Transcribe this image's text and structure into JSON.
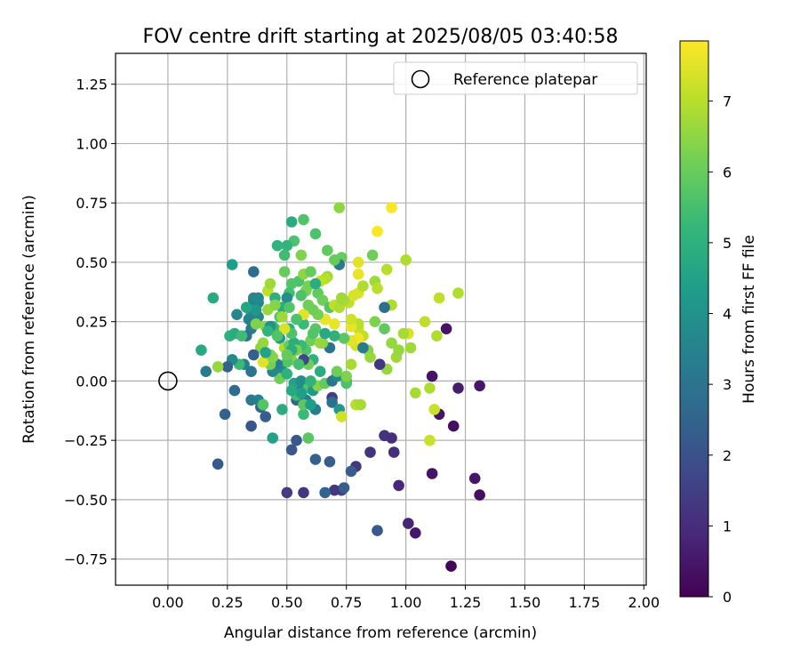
{
  "chart_data": {
    "type": "scatter",
    "title": "FOV centre drift starting at 2025/08/05 03:40:58",
    "xlabel": "Angular distance from reference (arcmin)",
    "ylabel": "Rotation from reference (arcmin)",
    "xlim": [
      -0.22,
      2.01
    ],
    "ylim": [
      -0.86,
      1.38
    ],
    "xticks": [
      0.0,
      0.25,
      0.5,
      0.75,
      1.0,
      1.25,
      1.5,
      1.75,
      2.0
    ],
    "xtick_labels": [
      "0.00",
      "0.25",
      "0.50",
      "0.75",
      "1.00",
      "1.25",
      "1.50",
      "1.75",
      "2.00"
    ],
    "yticks": [
      -0.75,
      -0.5,
      -0.25,
      0.0,
      0.25,
      0.5,
      0.75,
      1.0,
      1.25
    ],
    "ytick_labels": [
      "−0.75",
      "−0.50",
      "−0.25",
      "0.00",
      "0.25",
      "0.50",
      "0.75",
      "1.00",
      "1.25"
    ],
    "grid": true,
    "legend": {
      "position": "top-right",
      "entries": [
        "Reference platepar"
      ]
    },
    "reference_point": {
      "x": 0.0,
      "y": 0.0
    },
    "colorbar": {
      "label": "Hours from first FF file",
      "range": [
        0,
        7.85
      ],
      "ticks": [
        0,
        1,
        2,
        3,
        4,
        5,
        6,
        7
      ],
      "tick_labels": [
        "0",
        "1",
        "2",
        "3",
        "4",
        "5",
        "6",
        "7"
      ],
      "colormap": "viridis"
    },
    "colors": {
      "grid": "#b0b0b0",
      "viridis": [
        "#440154",
        "#482878",
        "#3e4989",
        "#31688e",
        "#26828e",
        "#1f9e89",
        "#35b779",
        "#6ece58",
        "#b5de2b",
        "#fde725"
      ]
    },
    "points": [
      [
        1.19,
        -0.78,
        0.1
      ],
      [
        1.04,
        -0.64,
        0.5
      ],
      [
        1.01,
        -0.6,
        0.8
      ],
      [
        0.97,
        -0.44,
        0.9
      ],
      [
        0.95,
        -0.3,
        1.0
      ],
      [
        0.94,
        -0.24,
        1.0
      ],
      [
        0.91,
        -0.23,
        1.1
      ],
      [
        1.29,
        -0.41,
        0.5
      ],
      [
        1.31,
        -0.48,
        0.3
      ],
      [
        1.11,
        -0.39,
        0.4
      ],
      [
        1.31,
        -0.02,
        0.5
      ],
      [
        1.22,
        -0.03,
        0.6
      ],
      [
        1.2,
        -0.19,
        0.3
      ],
      [
        1.14,
        -0.14,
        0.4
      ],
      [
        1.11,
        0.02,
        0.4
      ],
      [
        1.17,
        0.22,
        0.4
      ],
      [
        0.85,
        -0.3,
        1.2
      ],
      [
        0.79,
        -0.36,
        1.3
      ],
      [
        0.73,
        -0.46,
        1.5
      ],
      [
        0.77,
        -0.38,
        2.3
      ],
      [
        0.7,
        -0.46,
        1.3
      ],
      [
        0.66,
        -0.47,
        2.5
      ],
      [
        0.57,
        -0.47,
        1.3
      ],
      [
        0.5,
        -0.47,
        1.4
      ],
      [
        0.88,
        -0.63,
        2.2
      ],
      [
        0.74,
        -0.45,
        2.3
      ],
      [
        0.62,
        -0.33,
        2.4
      ],
      [
        0.68,
        -0.34,
        2.3
      ],
      [
        0.52,
        -0.29,
        2.2
      ],
      [
        0.54,
        -0.25,
        2.2
      ],
      [
        0.21,
        -0.35,
        2.2
      ],
      [
        0.35,
        -0.19,
        2.1
      ],
      [
        0.41,
        -0.15,
        2.3
      ],
      [
        0.24,
        -0.14,
        2.4
      ],
      [
        0.39,
        -0.11,
        2.6
      ],
      [
        0.28,
        -0.04,
        2.7
      ],
      [
        0.35,
        -0.08,
        3.2
      ],
      [
        0.38,
        -0.08,
        3.4
      ],
      [
        0.4,
        -0.1,
        5.7
      ],
      [
        0.44,
        -0.24,
        4.5
      ],
      [
        0.48,
        -0.12,
        4.9
      ],
      [
        0.57,
        -0.14,
        5.3
      ],
      [
        0.59,
        -0.24,
        5.8
      ],
      [
        0.62,
        -0.12,
        3.3
      ],
      [
        0.58,
        -0.08,
        3.4
      ],
      [
        0.54,
        -0.08,
        2.6
      ],
      [
        0.55,
        -0.03,
        2.8
      ],
      [
        0.53,
        -0.01,
        4.5
      ],
      [
        0.56,
        0.0,
        3.9
      ],
      [
        0.59,
        -0.03,
        5.6
      ],
      [
        0.61,
        -0.04,
        4.3
      ],
      [
        0.63,
        -0.02,
        6.4
      ],
      [
        0.66,
        -0.01,
        5.9
      ],
      [
        0.69,
        -0.07,
        1.4
      ],
      [
        0.69,
        -0.09,
        2.9
      ],
      [
        0.72,
        -0.12,
        4.2
      ],
      [
        0.73,
        -0.15,
        7.3
      ],
      [
        0.69,
        0.0,
        3.0
      ],
      [
        0.71,
        0.02,
        3.6
      ],
      [
        0.75,
        0.0,
        5.0
      ],
      [
        0.75,
        -0.01,
        5.6
      ],
      [
        0.75,
        0.02,
        6.3
      ],
      [
        0.71,
        0.04,
        6.1
      ],
      [
        0.79,
        -0.1,
        7.0
      ],
      [
        0.81,
        -0.1,
        6.8
      ],
      [
        0.77,
        0.07,
        6.8
      ],
      [
        0.92,
        0.05,
        6.6
      ],
      [
        0.89,
        0.07,
        1.3
      ],
      [
        0.96,
        0.1,
        6.7
      ],
      [
        0.97,
        0.13,
        6.6
      ],
      [
        0.94,
        0.16,
        6.6
      ],
      [
        1.01,
        0.2,
        7.4
      ],
      [
        1.02,
        0.14,
        6.7
      ],
      [
        0.99,
        0.2,
        6.8
      ],
      [
        1.04,
        -0.05,
        6.8
      ],
      [
        1.1,
        -0.03,
        6.9
      ],
      [
        1.12,
        -0.12,
        7.2
      ],
      [
        1.13,
        0.19,
        6.9
      ],
      [
        1.1,
        -0.25,
        7.2
      ],
      [
        1.08,
        0.25,
        7.1
      ],
      [
        1.14,
        0.35,
        7.1
      ],
      [
        1.22,
        0.37,
        6.9
      ],
      [
        0.94,
        0.32,
        6.9
      ],
      [
        0.91,
        0.31,
        2.9
      ],
      [
        0.91,
        0.22,
        5.9
      ],
      [
        0.87,
        0.25,
        6.3
      ],
      [
        0.8,
        0.22,
        7.2
      ],
      [
        0.82,
        0.19,
        7.1
      ],
      [
        0.77,
        0.23,
        6.8
      ],
      [
        0.79,
        0.15,
        7.3
      ],
      [
        0.8,
        0.18,
        7.7
      ],
      [
        0.84,
        0.13,
        6.4
      ],
      [
        0.85,
        0.1,
        6.6
      ],
      [
        0.82,
        0.14,
        3.2
      ],
      [
        0.8,
        0.24,
        7.0
      ],
      [
        0.77,
        0.17,
        7.5
      ],
      [
        0.77,
        0.23,
        7.6
      ],
      [
        0.74,
        0.18,
        5.8
      ],
      [
        0.77,
        0.26,
        7.3
      ],
      [
        0.76,
        0.33,
        7.1
      ],
      [
        0.78,
        0.36,
        7.4
      ],
      [
        0.8,
        0.37,
        7.4
      ],
      [
        0.82,
        0.4,
        6.9
      ],
      [
        0.8,
        0.45,
        7.6
      ],
      [
        0.8,
        0.5,
        7.5
      ],
      [
        0.86,
        0.53,
        6.1
      ],
      [
        0.87,
        0.42,
        6.7
      ],
      [
        0.88,
        0.39,
        7.0
      ],
      [
        0.92,
        0.47,
        7.0
      ],
      [
        0.88,
        0.63,
        7.8
      ],
      [
        0.94,
        0.73,
        7.8
      ],
      [
        1.0,
        0.51,
        6.9
      ],
      [
        0.72,
        0.73,
        6.5
      ],
      [
        0.73,
        0.52,
        6.0
      ],
      [
        0.72,
        0.49,
        3.3
      ],
      [
        0.7,
        0.51,
        6.0
      ],
      [
        0.67,
        0.55,
        5.9
      ],
      [
        0.67,
        0.44,
        6.7
      ],
      [
        0.66,
        0.43,
        7.0
      ],
      [
        0.64,
        0.42,
        7.1
      ],
      [
        0.63,
        0.37,
        5.9
      ],
      [
        0.65,
        0.34,
        6.1
      ],
      [
        0.68,
        0.31,
        5.7
      ],
      [
        0.66,
        0.26,
        5.5
      ],
      [
        0.7,
        0.24,
        7.6
      ],
      [
        0.7,
        0.32,
        7.1
      ],
      [
        0.72,
        0.31,
        6.9
      ],
      [
        0.74,
        0.34,
        6.8
      ],
      [
        0.73,
        0.35,
        6.7
      ],
      [
        0.7,
        0.19,
        5.0
      ],
      [
        0.68,
        0.14,
        3.0
      ],
      [
        0.65,
        0.16,
        6.4
      ],
      [
        0.66,
        0.26,
        7.6
      ],
      [
        0.63,
        0.28,
        6.2
      ],
      [
        0.61,
        0.3,
        6.1
      ],
      [
        0.62,
        0.22,
        5.8
      ],
      [
        0.6,
        0.17,
        6.1
      ],
      [
        0.58,
        0.13,
        5.7
      ],
      [
        0.56,
        0.15,
        5.3
      ],
      [
        0.57,
        0.24,
        5.3
      ],
      [
        0.57,
        0.28,
        7.5
      ],
      [
        0.59,
        0.32,
        6.1
      ],
      [
        0.58,
        0.38,
        6.2
      ],
      [
        0.56,
        0.36,
        5.6
      ],
      [
        0.55,
        0.42,
        5.6
      ],
      [
        0.57,
        0.45,
        6.5
      ],
      [
        0.56,
        0.53,
        6.3
      ],
      [
        0.57,
        0.68,
        5.7
      ],
      [
        0.52,
        0.67,
        4.8
      ],
      [
        0.53,
        0.59,
        5.6
      ],
      [
        0.5,
        0.57,
        5.1
      ],
      [
        0.49,
        0.53,
        5.4
      ],
      [
        0.46,
        0.57,
        5.1
      ],
      [
        0.49,
        0.46,
        6.0
      ],
      [
        0.52,
        0.41,
        5.7
      ],
      [
        0.51,
        0.37,
        5.5
      ],
      [
        0.5,
        0.35,
        3.9
      ],
      [
        0.48,
        0.31,
        4.8
      ],
      [
        0.51,
        0.31,
        5.7
      ],
      [
        0.47,
        0.27,
        5.7
      ],
      [
        0.45,
        0.22,
        5.5
      ],
      [
        0.44,
        0.23,
        5.3
      ],
      [
        0.47,
        0.18,
        4.3
      ],
      [
        0.49,
        0.14,
        6.9
      ],
      [
        0.51,
        0.15,
        6.0
      ],
      [
        0.53,
        0.16,
        4.9
      ],
      [
        0.54,
        0.13,
        6.2
      ],
      [
        0.52,
        0.09,
        6.3
      ],
      [
        0.5,
        0.08,
        5.7
      ],
      [
        0.48,
        0.04,
        3.8
      ],
      [
        0.47,
        0.01,
        6.1
      ],
      [
        0.46,
        0.07,
        3.4
      ],
      [
        0.44,
        0.04,
        3.6
      ],
      [
        0.43,
        0.07,
        6.2
      ],
      [
        0.43,
        0.11,
        6.2
      ],
      [
        0.4,
        0.08,
        7.5
      ],
      [
        0.39,
        0.14,
        6.4
      ],
      [
        0.4,
        0.16,
        6.6
      ],
      [
        0.41,
        0.23,
        6.4
      ],
      [
        0.42,
        0.3,
        6.6
      ],
      [
        0.42,
        0.38,
        7.1
      ],
      [
        0.43,
        0.41,
        6.7
      ],
      [
        0.45,
        0.35,
        5.0
      ],
      [
        0.45,
        0.32,
        6.4
      ],
      [
        0.43,
        0.23,
        4.0
      ],
      [
        0.38,
        0.27,
        3.6
      ],
      [
        0.38,
        0.33,
        3.5
      ],
      [
        0.36,
        0.34,
        3.3
      ],
      [
        0.35,
        0.29,
        4.2
      ],
      [
        0.36,
        0.3,
        3.8
      ],
      [
        0.37,
        0.3,
        4.1
      ],
      [
        0.34,
        0.26,
        3.5
      ],
      [
        0.35,
        0.22,
        3.3
      ],
      [
        0.33,
        0.19,
        3.0
      ],
      [
        0.37,
        0.24,
        6.3
      ],
      [
        0.36,
        0.11,
        2.4
      ],
      [
        0.35,
        0.04,
        3.1
      ],
      [
        0.32,
        0.07,
        3.4
      ],
      [
        0.3,
        0.07,
        5.3
      ],
      [
        0.27,
        0.09,
        3.7
      ],
      [
        0.25,
        0.06,
        2.4
      ],
      [
        0.21,
        0.06,
        6.6
      ],
      [
        0.16,
        0.04,
        3.2
      ],
      [
        0.14,
        0.13,
        4.7
      ],
      [
        0.26,
        0.19,
        5.0
      ],
      [
        0.28,
        0.2,
        4.8
      ],
      [
        0.31,
        0.19,
        5.4
      ],
      [
        0.29,
        0.28,
        3.6
      ],
      [
        0.33,
        0.31,
        4.6
      ],
      [
        0.19,
        0.35,
        4.7
      ],
      [
        0.27,
        0.49,
        4.4
      ],
      [
        0.36,
        0.46,
        2.8
      ],
      [
        0.36,
        0.35,
        3.6
      ],
      [
        0.38,
        0.35,
        3.7
      ],
      [
        0.62,
        0.62,
        5.6
      ],
      [
        0.61,
        0.09,
        5.0
      ],
      [
        0.59,
        0.07,
        6.1
      ],
      [
        0.57,
        0.09,
        1.7
      ],
      [
        0.6,
        0.0,
        5.1
      ],
      [
        0.64,
        0.04,
        4.8
      ],
      [
        0.64,
        0.16,
        6.6
      ],
      [
        0.66,
        0.2,
        4.7
      ],
      [
        0.61,
        0.2,
        5.7
      ],
      [
        0.54,
        0.26,
        5.6
      ],
      [
        0.59,
        0.4,
        6.2
      ],
      [
        0.6,
        0.46,
        6.0
      ],
      [
        0.62,
        0.41,
        4.9
      ],
      [
        0.51,
        0.22,
        4.9
      ],
      [
        0.52,
        0.2,
        5.6
      ],
      [
        0.55,
        0.07,
        5.5
      ],
      [
        0.52,
        0.13,
        4.9
      ],
      [
        0.5,
        0.11,
        6.0
      ],
      [
        0.49,
        0.22,
        7.4
      ],
      [
        0.48,
        0.27,
        6.7
      ],
      [
        0.46,
        0.19,
        5.7
      ],
      [
        0.44,
        0.1,
        6.4
      ],
      [
        0.41,
        0.12,
        4.5
      ],
      [
        0.54,
        -0.06,
        5.4
      ],
      [
        0.57,
        -0.1,
        5.8
      ],
      [
        0.6,
        -0.1,
        4.4
      ],
      [
        0.56,
        -0.05,
        4.4
      ],
      [
        0.52,
        -0.04,
        4.7
      ],
      [
        0.5,
        0.03,
        5.0
      ],
      [
        0.42,
        0.21,
        5.1
      ]
    ]
  }
}
